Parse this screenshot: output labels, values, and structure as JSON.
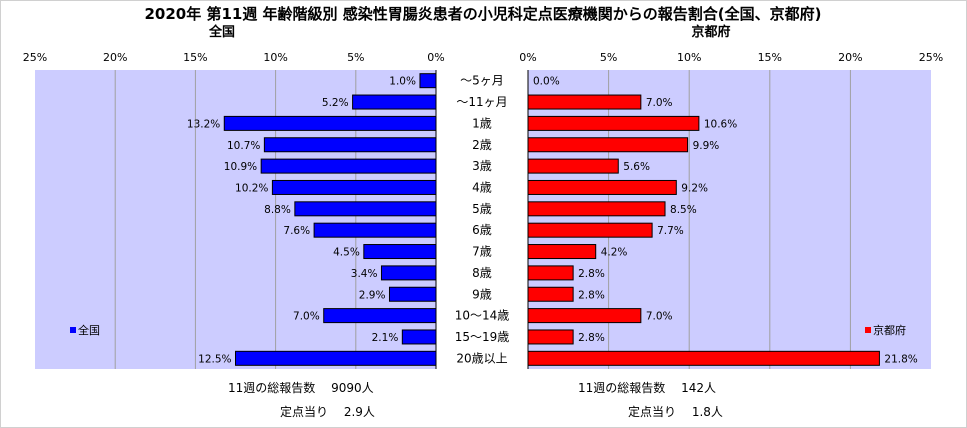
{
  "title": "2020年 第11週 年齢階級別 感染性胃腸炎患者の小児科定点医療機関からの報告割合(全国、京都府)",
  "colors": {
    "national": "#0000ff",
    "kyoto": "#ff0000",
    "plot_bg": "#ccccff",
    "grid": "#a0a0a0"
  },
  "chart_data": [
    {
      "type": "bar",
      "orientation": "horizontal-left",
      "title": "全国",
      "legend": "全国",
      "legend_placement": "bottom-left",
      "xlim": [
        0,
        25
      ],
      "ticks": [
        "25%",
        "20%",
        "15%",
        "10%",
        "5%",
        "0%"
      ],
      "categories": [
        "～5ヶ月",
        "～11ヶ月",
        "1歳",
        "2歳",
        "3歳",
        "4歳",
        "5歳",
        "6歳",
        "7歳",
        "8歳",
        "9歳",
        "10～14歳",
        "15～19歳",
        "20歳以上"
      ],
      "values": [
        1.0,
        5.2,
        13.2,
        10.7,
        10.9,
        10.2,
        8.8,
        7.6,
        4.5,
        3.4,
        2.9,
        7.0,
        2.1,
        12.5
      ],
      "labels": [
        "1.0%",
        "5.2%",
        "13.2%",
        "10.7%",
        "10.9%",
        "10.2%",
        "8.8%",
        "7.6%",
        "4.5%",
        "3.4%",
        "2.9%",
        "7.0%",
        "2.1%",
        "12.5%"
      ],
      "grid": true
    },
    {
      "type": "bar",
      "orientation": "horizontal-right",
      "title": "京都府",
      "legend": "京都府",
      "legend_placement": "bottom-right",
      "xlim": [
        0,
        25
      ],
      "ticks": [
        "0%",
        "5%",
        "10%",
        "15%",
        "20%",
        "25%"
      ],
      "categories": [
        "～5ヶ月",
        "～11ヶ月",
        "1歳",
        "2歳",
        "3歳",
        "4歳",
        "5歳",
        "6歳",
        "7歳",
        "8歳",
        "9歳",
        "10～14歳",
        "15～19歳",
        "20歳以上"
      ],
      "values": [
        0.0,
        7.0,
        10.6,
        9.9,
        5.6,
        9.2,
        8.5,
        7.7,
        4.2,
        2.8,
        2.8,
        7.0,
        2.8,
        21.8
      ],
      "labels": [
        "0.0%",
        "7.0%",
        "10.6%",
        "9.9%",
        "5.6%",
        "9.2%",
        "8.5%",
        "7.7%",
        "4.2%",
        "2.8%",
        "2.8%",
        "7.0%",
        "2.8%",
        "21.8%"
      ],
      "grid": true
    }
  ],
  "footer": {
    "national_total": "11週の総報告数　 9090人",
    "national_per_site": "定点当り　 2.9人",
    "kyoto_total": "11週の総報告数　 142人",
    "kyoto_per_site": "定点当り　 1.8人"
  }
}
